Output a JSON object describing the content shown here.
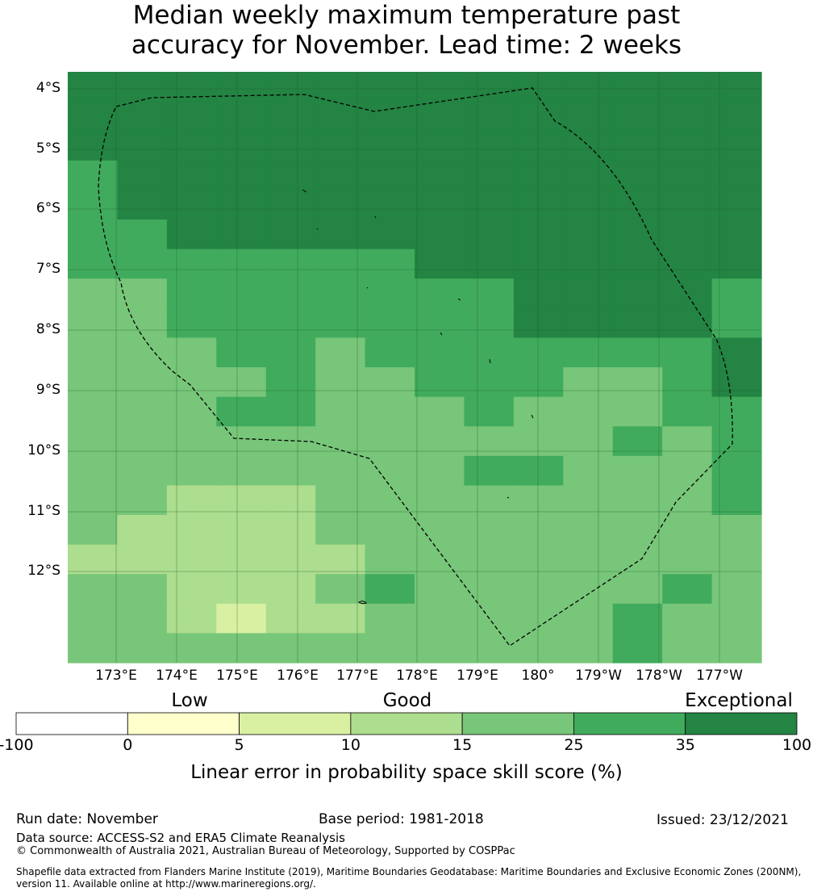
{
  "title": {
    "line1": "Median weekly maximum temperature past",
    "line2": "accuracy for November. Lead time: 2 weeks"
  },
  "map": {
    "lat_labels": [
      "4°S",
      "5°S",
      "6°S",
      "7°S",
      "8°S",
      "9°S",
      "10°S",
      "11°S",
      "12°S"
    ],
    "lon_labels": [
      "173°E",
      "174°E",
      "175°E",
      "176°E",
      "177°E",
      "178°E",
      "179°E",
      "180°",
      "179°W",
      "178°W",
      "177°W"
    ],
    "boundary_style": "dashed",
    "grid": true
  },
  "colorbar": {
    "categories": [
      {
        "label": "Low",
        "position": 5
      },
      {
        "label": "Good",
        "position": 15
      },
      {
        "label": "Exceptional",
        "position": 100
      }
    ],
    "ticks": [
      "-100",
      "0",
      "5",
      "10",
      "15",
      "25",
      "35",
      "100"
    ],
    "colors": [
      "#ffffff",
      "#ffffcc",
      "#d9f0a3",
      "#addd8e",
      "#78c679",
      "#41ab5d",
      "#238443"
    ],
    "label": "Linear error in probability space skill score (%)"
  },
  "chart_data": {
    "type": "heatmap",
    "title": "Median weekly maximum temperature past accuracy for November. Lead time: 2 weeks",
    "xlabel": "",
    "ylabel": "",
    "legend": "Linear error in probability space skill score (%)",
    "bins": [
      -100,
      0,
      5,
      10,
      15,
      25,
      35,
      100
    ],
    "rows_note": "grid cells 0.83° spacing, top row first, values are colour class index 0-6",
    "cells": [
      "66666666666666",
      "66666666666666",
      "66666666666666",
      "56666666666666",
      "56666666666666",
      "55666666666666",
      "55555556666666",
      "44555555566665",
      "44555555566665",
      "44455455555556",
      "44445445554456",
      "44455444544455",
      "44444444444545",
      "44444444554445",
      "44333444444445",
      "43333444444444",
      "33333344444444",
      "44333454444454",
      "44323344444544",
      "44444444444544"
    ]
  },
  "footer": {
    "run_date": "Run date: November",
    "base_period": "Base period: 1981-2018",
    "issued": "Issued: 23/12/2021",
    "data_source": "Data source: ACCESS-S2 and ERA5 Climate Reanalysis",
    "copyright": "© Commonwealth of Australia 2021, Australian Bureau of Meteorology, Supported by COSPPac",
    "shapefile_1": "Shapefile data extracted from Flanders Marine Institute (2019), Maritime Boundaries Geodatabase: Maritime Boundaries and Exclusive Economic Zones (200NM),",
    "shapefile_2": "version 11. Available online at http://www.marineregions.org/."
  }
}
